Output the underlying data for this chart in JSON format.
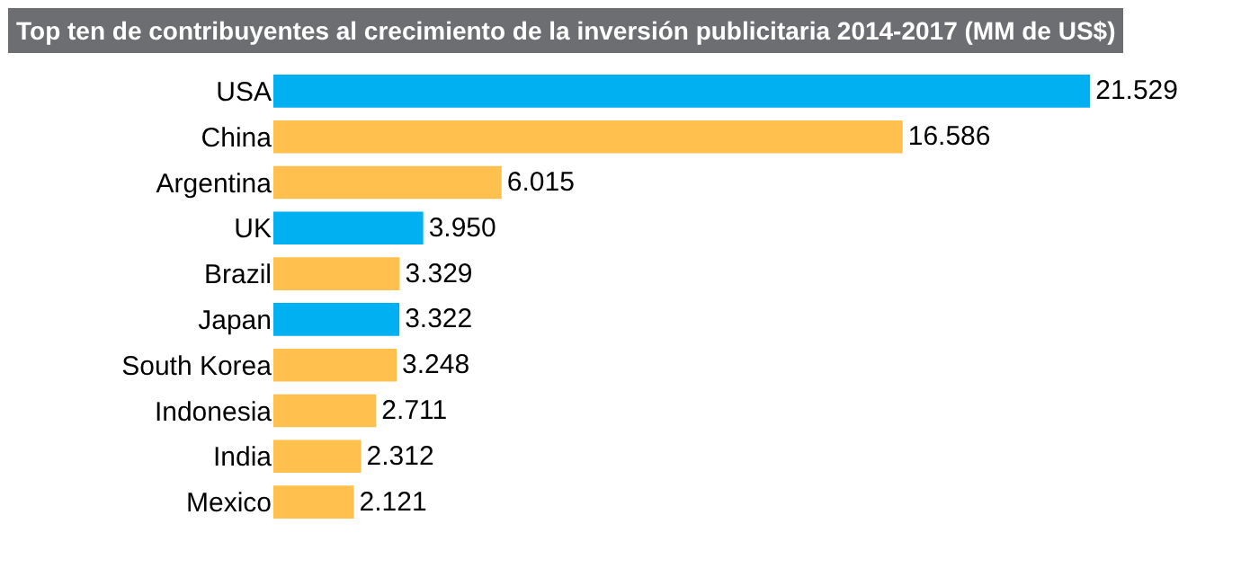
{
  "chart_data": {
    "type": "bar",
    "orientation": "horizontal",
    "title": "Top ten de contribuyentes al crecimiento de la inversión publicitaria 2014-2017 (MM de US$)",
    "categories": [
      "USA",
      "China",
      "Argentina",
      "UK",
      "Brazil",
      "Japan",
      "South Korea",
      "Indonesia",
      "India",
      "Mexico"
    ],
    "values": [
      21.529,
      16.586,
      6.015,
      3.95,
      3.329,
      3.322,
      3.248,
      2.711,
      2.312,
      2.121
    ],
    "value_labels": [
      "21.529",
      "16.586",
      "6.015",
      "3.950",
      "3.329",
      "3.322",
      "3.248",
      "2.711",
      "2.312",
      "2.121"
    ],
    "colors": [
      "#00b0f0",
      "#ffc04d",
      "#ffc04d",
      "#00b0f0",
      "#ffc04d",
      "#00b0f0",
      "#ffc04d",
      "#ffc04d",
      "#ffc04d",
      "#ffc04d"
    ]
  }
}
